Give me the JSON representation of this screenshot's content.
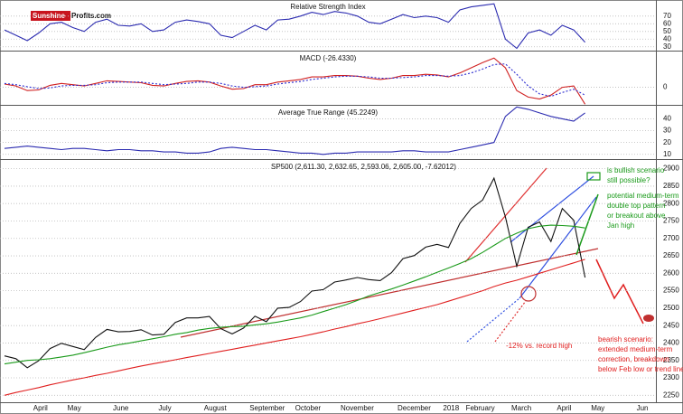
{
  "logo": {
    "brand": "Sunshine",
    "suffix": "Profits.com"
  },
  "chart_data": [
    {
      "type": "line",
      "title": "Relative Strength Index",
      "ylim": [
        25,
        91
      ],
      "yticks": [
        30,
        40,
        50,
        60,
        70
      ],
      "series": [
        {
          "color": "#2b2bb0",
          "values": [
            52,
            45,
            38,
            48,
            60,
            62,
            55,
            50,
            62,
            66,
            58,
            57,
            60,
            50,
            52,
            62,
            65,
            63,
            60,
            45,
            42,
            50,
            58,
            52,
            65,
            66,
            70,
            75,
            72,
            76,
            74,
            70,
            62,
            60,
            66,
            72,
            68,
            70,
            68,
            62,
            78,
            82,
            84,
            86,
            40,
            28,
            48,
            52,
            45,
            58,
            52,
            36,
            null,
            null,
            null,
            null,
            null
          ]
        }
      ]
    },
    {
      "type": "line",
      "title": "MACD (-26.4330)",
      "ylim": [
        -27,
        55
      ],
      "yticks": [
        0
      ],
      "series": [
        {
          "color": "#d02020",
          "values": [
            5,
            2,
            -5,
            -4,
            3,
            6,
            4,
            2,
            6,
            10,
            9,
            8,
            7,
            3,
            2,
            6,
            9,
            10,
            8,
            2,
            -3,
            -2,
            4,
            4,
            8,
            10,
            12,
            16,
            16,
            18,
            18,
            17,
            14,
            12,
            14,
            18,
            18,
            20,
            19,
            16,
            22,
            30,
            38,
            45,
            30,
            -5,
            -15,
            -18,
            -12,
            0,
            2,
            -26,
            null,
            null,
            null,
            null,
            null
          ]
        },
        {
          "color": "#2b2bd0",
          "dashed": true,
          "values": [
            6,
            4,
            1,
            -2,
            -1,
            2,
            3,
            3,
            4,
            7,
            8,
            8,
            8,
            6,
            4,
            5,
            6,
            8,
            8,
            6,
            2,
            0,
            1,
            2,
            5,
            7,
            9,
            12,
            14,
            16,
            17,
            17,
            16,
            14,
            14,
            15,
            16,
            18,
            18,
            17,
            18,
            22,
            28,
            35,
            36,
            20,
            2,
            -10,
            -14,
            -8,
            -3,
            -12,
            null,
            null,
            null,
            null,
            null
          ]
        }
      ]
    },
    {
      "type": "line",
      "title": "Average True Range (45.2249)",
      "ylim": [
        6,
        51
      ],
      "yticks": [
        10,
        20,
        30,
        40
      ],
      "series": [
        {
          "color": "#2b2bb0",
          "values": [
            15,
            16,
            17,
            16,
            15,
            14,
            15,
            15,
            14,
            13,
            14,
            14,
            13,
            13,
            12,
            12,
            11,
            11,
            12,
            15,
            16,
            15,
            14,
            14,
            13,
            12,
            11,
            11,
            10,
            11,
            11,
            12,
            12,
            12,
            12,
            13,
            13,
            12,
            12,
            12,
            14,
            16,
            18,
            20,
            42,
            50,
            48,
            45,
            42,
            40,
            38,
            45,
            null,
            null,
            null,
            null,
            null
          ]
        }
      ]
    },
    {
      "type": "line",
      "title": "SP500 (2,611.30, 2,632.65, 2,593.06, 2,605.00, -7.62012)",
      "ylim": [
        2230,
        2925
      ],
      "yticks": [
        2250,
        2300,
        2350,
        2400,
        2450,
        2500,
        2550,
        2600,
        2650,
        2700,
        2750,
        2800,
        2850,
        2900
      ],
      "categories": [
        null,
        null,
        null,
        "April",
        null,
        null,
        "May",
        null,
        null,
        null,
        "June",
        null,
        null,
        null,
        "July",
        null,
        null,
        null,
        "August",
        null,
        null,
        null,
        "September",
        null,
        null,
        null,
        "October",
        null,
        null,
        null,
        "November",
        null,
        null,
        null,
        null,
        "December",
        null,
        null,
        null,
        "2018",
        null,
        "February",
        null,
        null,
        null,
        "March",
        null,
        null,
        null,
        "April",
        null,
        null,
        "May",
        null,
        null,
        null,
        "Jun"
      ],
      "series": [
        {
          "color": "#111111",
          "values": [
            2363,
            2355,
            2329,
            2349,
            2384,
            2399,
            2390,
            2381,
            2416,
            2439,
            2432,
            2433,
            2438,
            2423,
            2425,
            2459,
            2472,
            2472,
            2476,
            2441,
            2426,
            2443,
            2477,
            2461,
            2500,
            2502,
            2519,
            2549,
            2553,
            2575,
            2581,
            2588,
            2582,
            2579,
            2602,
            2642,
            2651,
            2675,
            2683,
            2674,
            2743,
            2786,
            2810,
            2873,
            2762,
            2620,
            2732,
            2747,
            2691,
            2786,
            2752,
            2588,
            null,
            null,
            null,
            null,
            null
          ]
        },
        {
          "color": "#1a9a1a",
          "values": [
            2340,
            2345,
            2350,
            2352,
            2355,
            2360,
            2365,
            2372,
            2380,
            2388,
            2395,
            2400,
            2406,
            2412,
            2418,
            2425,
            2430,
            2437,
            2442,
            2445,
            2447,
            2448,
            2452,
            2455,
            2460,
            2466,
            2472,
            2480,
            2490,
            2500,
            2510,
            2522,
            2535,
            2545,
            2555,
            2566,
            2578,
            2590,
            2603,
            2615,
            2628,
            2642,
            2660,
            2680,
            2700,
            2715,
            2728,
            2735,
            2738,
            2737,
            2735,
            2730,
            null,
            null,
            null,
            null,
            null
          ]
        },
        {
          "color": "#e02020",
          "values": [
            2250,
            2258,
            2265,
            2272,
            2280,
            2287,
            2294,
            2300,
            2307,
            2313,
            2320,
            2327,
            2334,
            2340,
            2346,
            2352,
            2358,
            2364,
            2370,
            2376,
            2382,
            2388,
            2394,
            2400,
            2406,
            2412,
            2418,
            2425,
            2432,
            2440,
            2447,
            2455,
            2462,
            2470,
            2478,
            2486,
            2494,
            2502,
            2510,
            2520,
            2530,
            2540,
            2550,
            2562,
            2572,
            2580,
            2590,
            2600,
            2610,
            2620,
            2630,
            2640,
            null,
            null,
            null,
            null,
            null
          ]
        }
      ],
      "annotations": [
        {
          "color": "#1a9a1a",
          "lines": [
            "is bullish scenario",
            "still possible?"
          ]
        },
        {
          "color": "#1a9a1a",
          "lines": [
            "potential medium-term",
            "double top pattern",
            "or breakout above",
            "Jan high"
          ]
        },
        {
          "color": "#e02020",
          "lines": [
            "bearish scenario:",
            "extended medium-term",
            "correction, breakdown",
            "below Feb low or trend line"
          ]
        },
        {
          "color": "#e02020",
          "lines": [
            "-12% vs. record high"
          ]
        }
      ]
    }
  ]
}
